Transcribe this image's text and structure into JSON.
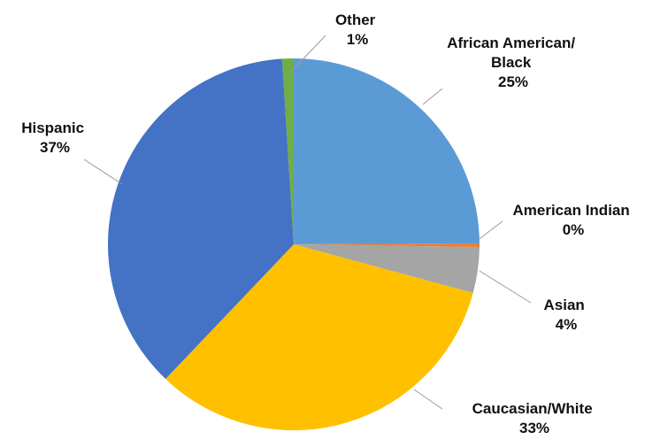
{
  "chart_data": {
    "type": "pie",
    "title": "",
    "start_angle_deg": 0,
    "direction": "clockwise",
    "slices": [
      {
        "label": "African American/ Black",
        "label_lines": [
          "African American/",
          "Black"
        ],
        "pct_text": "25%",
        "value": 25,
        "color": "#5B9BD5"
      },
      {
        "label": "American Indian",
        "label_lines": [
          "American Indian"
        ],
        "pct_text": "0%",
        "value": 0.3,
        "color": "#ED7D31"
      },
      {
        "label": "Asian",
        "label_lines": [
          "Asian"
        ],
        "pct_text": "4%",
        "value": 4,
        "color": "#A5A5A5"
      },
      {
        "label": "Caucasian/White",
        "label_lines": [
          "Caucasian/White"
        ],
        "pct_text": "33%",
        "value": 33,
        "color": "#FFC000"
      },
      {
        "label": "Hispanic",
        "label_lines": [
          "Hispanic"
        ],
        "pct_text": "37%",
        "value": 37,
        "color": "#4472C4"
      },
      {
        "label": "Other",
        "label_lines": [
          "Other"
        ],
        "pct_text": "1%",
        "value": 1,
        "color": "#70AD47"
      }
    ]
  }
}
